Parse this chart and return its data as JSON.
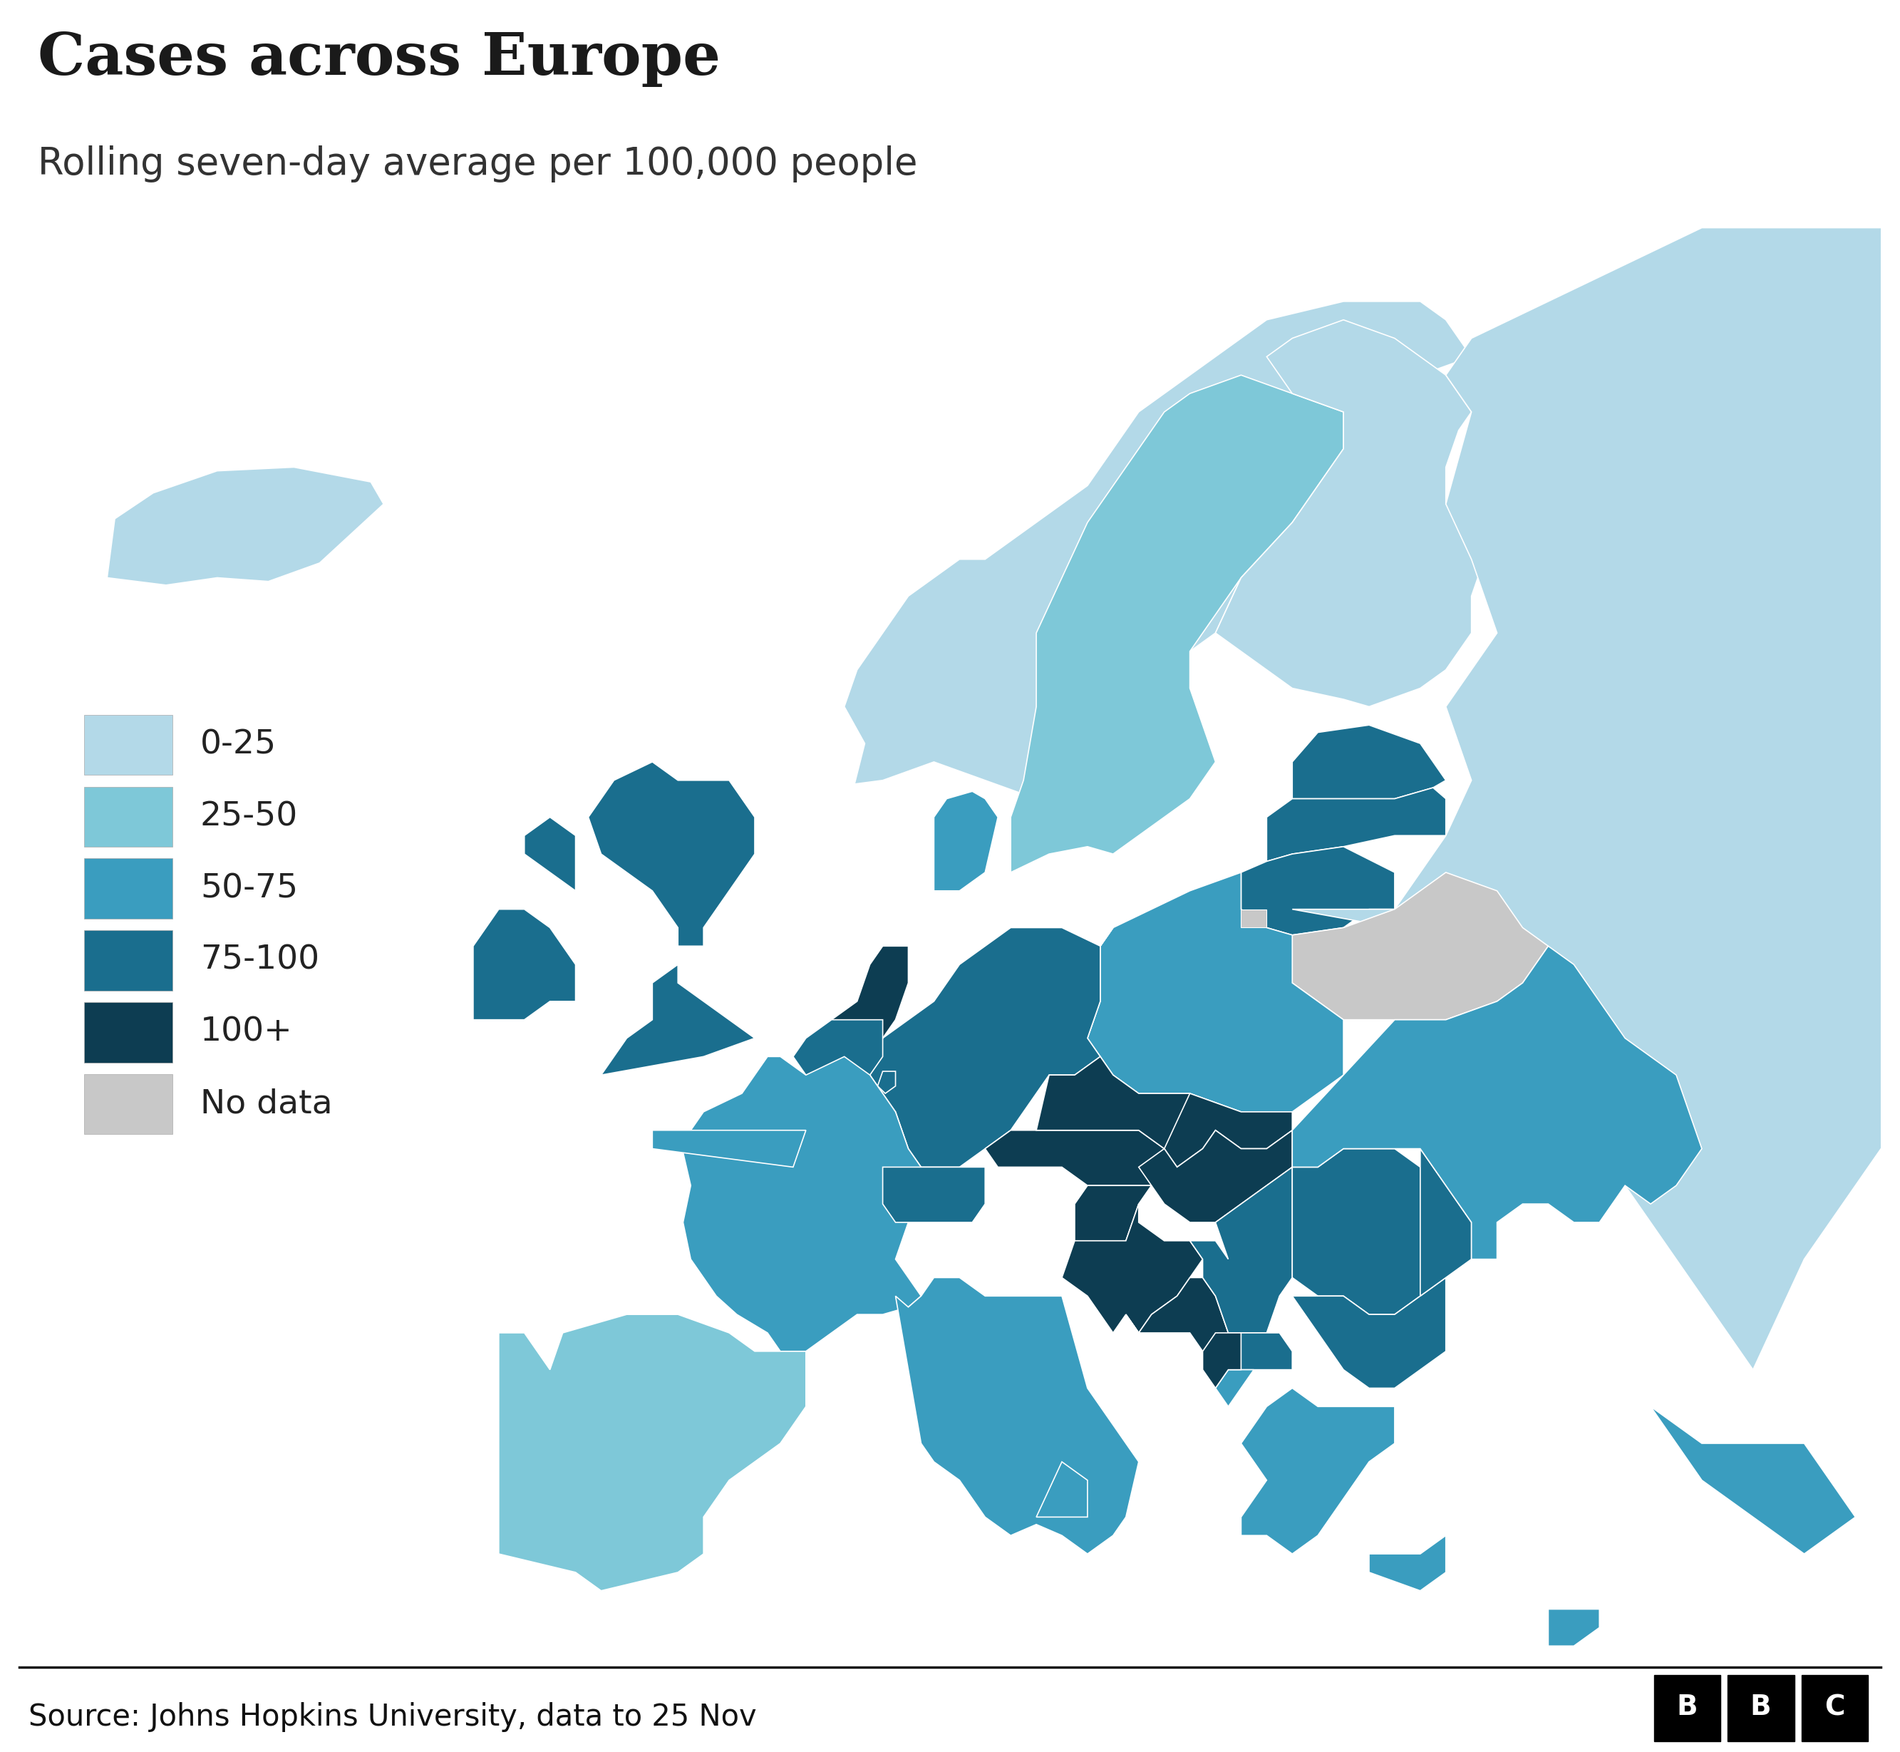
{
  "title": "Cases across Europe",
  "subtitle": "Rolling seven-day average per 100,000 people",
  "source": "Source: Johns Hopkins University, data to 25 Nov",
  "legend_labels": [
    "0-25",
    "25-50",
    "50-75",
    "75-100",
    "100+",
    "No data"
  ],
  "colors": {
    "0-25": "#b3d9e8",
    "25-50": "#7ec8d8",
    "50-75": "#3a9dbf",
    "75-100": "#1a6e8e",
    "100+": "#0d3d52",
    "No data": "#c8c8c8",
    "water": "#ffffff",
    "background": "#ffffff",
    "border": "#ffffff"
  },
  "country_rates": {
    "Iceland": "0-25",
    "Norway": "0-25",
    "Sweden": "25-50",
    "Finland": "0-25",
    "Denmark": "50-75",
    "Estonia": "75-100",
    "Latvia": "75-100",
    "Lithuania": "75-100",
    "Russia": "0-25",
    "Belarus": "No data",
    "Poland": "50-75",
    "Germany": "75-100",
    "Netherlands": "100+",
    "Belgium": "75-100",
    "Luxembourg": "75-100",
    "France": "50-75",
    "Switzerland": "75-100",
    "Austria": "100+",
    "Czech Republic": "100+",
    "Slovakia": "100+",
    "Hungary": "100+",
    "Slovenia": "100+",
    "Croatia": "100+",
    "Bosnia and Herzegovina": "100+",
    "Serbia": "75-100",
    "Romania": "75-100",
    "Bulgaria": "75-100",
    "North Macedonia": "75-100",
    "Albania": "50-75",
    "Montenegro": "100+",
    "Moldova": "75-100",
    "Ukraine": "50-75",
    "United Kingdom": "75-100",
    "Ireland": "75-100",
    "Portugal": "25-50",
    "Spain": "25-50",
    "Italy": "50-75",
    "Greece": "50-75",
    "Turkey": "50-75",
    "Cyprus": "50-75",
    "Malta": "25-50"
  },
  "title_fontsize": 60,
  "subtitle_fontsize": 38,
  "source_fontsize": 30,
  "legend_fontsize": 34
}
